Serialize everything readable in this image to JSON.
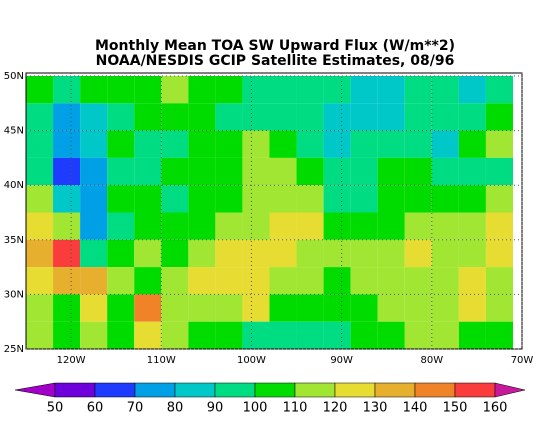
{
  "chart_data": {
    "type": "map",
    "title": "Monthly Mean TOA SW Upward Flux (W/m**2)",
    "subtitle": "NOAA/NESDIS GCIP Satellite Estimates, 08/96",
    "xlim": [
      -125,
      -70
    ],
    "ylim": [
      25,
      50
    ],
    "xticks": [
      {
        "value": -120,
        "label": "120W"
      },
      {
        "value": -110,
        "label": "110W"
      },
      {
        "value": -100,
        "label": "100W"
      },
      {
        "value": -90,
        "label": "90W"
      },
      {
        "value": -80,
        "label": "80W"
      },
      {
        "value": -70,
        "label": "70W"
      }
    ],
    "yticks": [
      {
        "value": 25,
        "label": "25N"
      },
      {
        "value": 30,
        "label": "30N"
      },
      {
        "value": 35,
        "label": "35N"
      },
      {
        "value": 40,
        "label": "40N"
      },
      {
        "value": 45,
        "label": "45N"
      },
      {
        "value": 50,
        "label": "50N"
      }
    ],
    "grid": true,
    "levels": [
      50,
      60,
      70,
      80,
      90,
      100,
      110,
      120,
      130,
      140,
      150,
      160
    ],
    "colors": [
      "#a000c8",
      "#6e00dc",
      "#1e3cff",
      "#00a0e6",
      "#00c8c8",
      "#00dc82",
      "#00dc00",
      "#a0e632",
      "#e6dc32",
      "#e6af2d",
      "#f08228",
      "#fa3c3c",
      "#c8189b"
    ],
    "lon": [
      -123.5,
      -120.5,
      -117.5,
      -114.5,
      -111.5,
      -108.5,
      -105.5,
      -102.5,
      -99.5,
      -96.5,
      -93.5,
      -90.5,
      -87.5,
      -84.5,
      -81.5,
      -78.5,
      -75.5,
      -72.5
    ],
    "lat": [
      48.75,
      46.25,
      43.75,
      41.25,
      38.75,
      36.25,
      33.75,
      31.25,
      28.75,
      26.25
    ],
    "values": [
      [
        100,
        95,
        100,
        105,
        105,
        110,
        105,
        100,
        95,
        95,
        90,
        90,
        85,
        85,
        90,
        90,
        85,
        95
      ],
      [
        90,
        75,
        85,
        95,
        100,
        100,
        100,
        95,
        90,
        95,
        95,
        85,
        80,
        85,
        90,
        90,
        90,
        100
      ],
      [
        95,
        70,
        85,
        100,
        90,
        90,
        100,
        100,
        115,
        100,
        90,
        85,
        90,
        95,
        90,
        85,
        105,
        110
      ],
      [
        95,
        65,
        75,
        95,
        95,
        100,
        100,
        105,
        115,
        110,
        100,
        95,
        95,
        100,
        100,
        95,
        90,
        95
      ],
      [
        110,
        85,
        70,
        100,
        100,
        95,
        100,
        105,
        110,
        110,
        115,
        95,
        95,
        100,
        100,
        100,
        105,
        110
      ],
      [
        125,
        110,
        70,
        95,
        100,
        100,
        100,
        110,
        115,
        120,
        120,
        105,
        100,
        105,
        110,
        110,
        115,
        120
      ],
      [
        135,
        150,
        95,
        105,
        110,
        105,
        110,
        120,
        125,
        120,
        115,
        110,
        110,
        110,
        120,
        115,
        115,
        120
      ],
      [
        125,
        130,
        130,
        110,
        100,
        110,
        120,
        120,
        125,
        115,
        110,
        105,
        110,
        115,
        110,
        115,
        120,
        115
      ],
      [
        115,
        105,
        120,
        105,
        145,
        110,
        110,
        115,
        120,
        100,
        100,
        100,
        105,
        115,
        110,
        115,
        120,
        110
      ],
      [
        110,
        100,
        110,
        100,
        120,
        110,
        100,
        105,
        95,
        95,
        95,
        95,
        100,
        105,
        110,
        115,
        105,
        105
      ]
    ]
  }
}
